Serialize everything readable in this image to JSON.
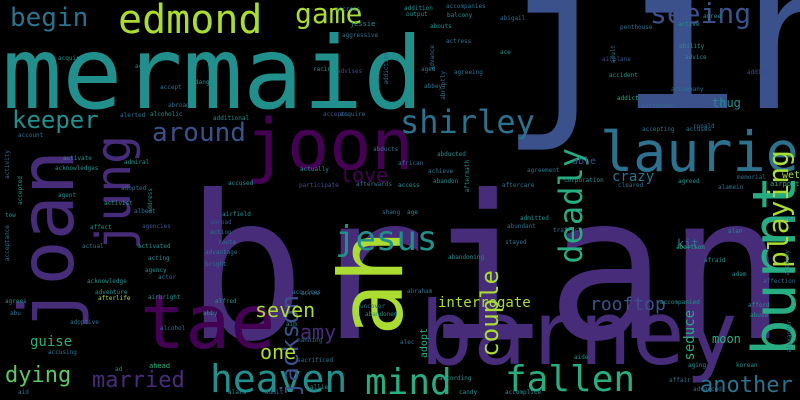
{
  "colors": {
    "background": "#000000",
    "palette": [
      "#440154",
      "#472c7a",
      "#3b518b",
      "#2c718e",
      "#21908d",
      "#27ad81",
      "#5cc863",
      "#aadc32"
    ]
  },
  "words": [
    {
      "text": "brian",
      "color": "#472c7a"
    },
    {
      "text": "jin",
      "color": "#3b518b"
    },
    {
      "text": "mermaid",
      "color": "#21908d"
    },
    {
      "text": "barney",
      "color": "#472c7a"
    },
    {
      "text": "ah",
      "color": "#aadc32"
    },
    {
      "text": "tae",
      "color": "#440154"
    },
    {
      "text": "joan",
      "color": "#472c7a"
    },
    {
      "text": "joon",
      "color": "#440154"
    },
    {
      "text": "burnt",
      "color": "#27ad81"
    },
    {
      "text": "laurie",
      "color": "#2c718e"
    },
    {
      "text": "jung",
      "color": "#472c7a"
    },
    {
      "text": "edmond",
      "color": "#aadc32"
    },
    {
      "text": "heaven",
      "color": "#21908d"
    },
    {
      "text": "mind",
      "color": "#27ad81"
    },
    {
      "text": "fallen",
      "color": "#27ad81"
    },
    {
      "text": "jesus",
      "color": "#21908d"
    },
    {
      "text": "shirley",
      "color": "#2c718e"
    },
    {
      "text": "deadly",
      "color": "#27ad81"
    },
    {
      "text": "playing",
      "color": "#aadc32"
    },
    {
      "text": "seeing",
      "color": "#3b518b"
    },
    {
      "text": "game",
      "color": "#aadc32"
    },
    {
      "text": "begin",
      "color": "#2c718e"
    },
    {
      "text": "around",
      "color": "#3b518b"
    },
    {
      "text": "couple",
      "color": "#aadc32"
    },
    {
      "text": "jackson",
      "color": "#3b518b"
    },
    {
      "text": "keeper",
      "color": "#21908d"
    },
    {
      "text": "married",
      "color": "#472c7a"
    },
    {
      "text": "dying",
      "color": "#5cc863"
    },
    {
      "text": "another",
      "color": "#2c718e"
    },
    {
      "text": "love",
      "color": "#440154"
    },
    {
      "text": "seven",
      "color": "#aadc32"
    },
    {
      "text": "amy",
      "color": "#472c7a"
    },
    {
      "text": "one",
      "color": "#aadc32"
    },
    {
      "text": "rooftop",
      "color": "#3b518b"
    },
    {
      "text": "interrogate",
      "color": "#aadc32"
    },
    {
      "text": "crazy",
      "color": "#2c718e"
    },
    {
      "text": "thug",
      "color": "#21908d"
    },
    {
      "text": "guise",
      "color": "#27ad81"
    },
    {
      "text": "kit",
      "color": "#2c718e"
    },
    {
      "text": "moon",
      "color": "#27ad81"
    },
    {
      "text": "seduce",
      "color": "#27ad81"
    },
    {
      "text": "able",
      "color": "#3b518b"
    },
    {
      "text": "wet",
      "color": "#aadc32"
    },
    {
      "text": "airport",
      "color": "#27ad81"
    },
    {
      "text": "accused",
      "color": "#21908d"
    },
    {
      "text": "abducted",
      "color": "#21908d"
    },
    {
      "text": "abortion",
      "color": "#27ad81"
    },
    {
      "text": "advice",
      "color": "#21908d"
    },
    {
      "text": "adult",
      "color": "#2c718e"
    },
    {
      "text": "accident",
      "color": "#21908d"
    },
    {
      "text": "addict",
      "color": "#27ad81"
    },
    {
      "text": "actress",
      "color": "#2c718e"
    },
    {
      "text": "aggressive",
      "color": "#2c718e"
    },
    {
      "text": "acquired",
      "color": "#21908d"
    },
    {
      "text": "acid",
      "color": "#21908d"
    },
    {
      "text": "jessie",
      "color": "#21908d"
    },
    {
      "text": "racing",
      "color": "#21908d"
    },
    {
      "text": "aged",
      "color": "#2c718e"
    },
    {
      "text": "addition",
      "color": "#21908d"
    },
    {
      "text": "output",
      "color": "#21908d"
    },
    {
      "text": "balcony",
      "color": "#21908d"
    },
    {
      "text": "abigail",
      "color": "#2c718e"
    },
    {
      "text": "agree",
      "color": "#21908d"
    },
    {
      "text": "active",
      "color": "#21908d"
    },
    {
      "text": "penthouse",
      "color": "#2c718e"
    },
    {
      "text": "ability",
      "color": "#21908d"
    },
    {
      "text": "accompanies",
      "color": "#2c718e"
    },
    {
      "text": "accross",
      "color": "#21908d"
    },
    {
      "text": "abouts",
      "color": "#21908d"
    },
    {
      "text": "airplane",
      "color": "#3b518b"
    },
    {
      "text": "agreeing",
      "color": "#2c718e"
    },
    {
      "text": "abbey",
      "color": "#2c718e"
    },
    {
      "text": "advises",
      "color": "#3b518b"
    },
    {
      "text": "accepts",
      "color": "#3b518b"
    },
    {
      "text": "alcoholic",
      "color": "#21908d"
    },
    {
      "text": "alerted",
      "color": "#2c718e"
    },
    {
      "text": "additional",
      "color": "#21908d"
    },
    {
      "text": "admiral",
      "color": "#21908d"
    },
    {
      "text": "activity",
      "color": "#2c718e"
    },
    {
      "text": "activate",
      "color": "#21908d"
    },
    {
      "text": "acknowledges",
      "color": "#21908d"
    },
    {
      "text": "account",
      "color": "#2c718e"
    },
    {
      "text": "actually",
      "color": "#21908d"
    },
    {
      "text": "participate",
      "color": "#3b518b"
    },
    {
      "text": "afterwards",
      "color": "#2c718e"
    },
    {
      "text": "access",
      "color": "#21908d"
    },
    {
      "text": "achieve",
      "color": "#2c718e"
    },
    {
      "text": "abandon",
      "color": "#21908d"
    },
    {
      "text": "african",
      "color": "#2c718e"
    },
    {
      "text": "aftermath",
      "color": "#21908d"
    },
    {
      "text": "agreement",
      "color": "#2c718e"
    },
    {
      "text": "corporation",
      "color": "#21908d"
    },
    {
      "text": "cleared",
      "color": "#2c718e"
    },
    {
      "text": "agreed",
      "color": "#21908d"
    },
    {
      "text": "memorial",
      "color": "#2c718e"
    },
    {
      "text": "alamein",
      "color": "#2c718e"
    },
    {
      "text": "accepting",
      "color": "#2c718e"
    },
    {
      "text": "accuses",
      "color": "#2c718e"
    },
    {
      "text": "ronald",
      "color": "#2c718e"
    },
    {
      "text": "accepted",
      "color": "#21908d"
    },
    {
      "text": "airfield",
      "color": "#21908d"
    },
    {
      "text": "agent",
      "color": "#21908d"
    },
    {
      "text": "activist",
      "color": "#21908d"
    },
    {
      "text": "address",
      "color": "#21908d"
    },
    {
      "text": "acceptance",
      "color": "#2c718e"
    },
    {
      "text": "tow",
      "color": "#21908d"
    },
    {
      "text": "affect",
      "color": "#21908d"
    },
    {
      "text": "actual",
      "color": "#2c718e"
    },
    {
      "text": "activated",
      "color": "#21908d"
    },
    {
      "text": "acting",
      "color": "#21908d"
    },
    {
      "text": "abroad",
      "color": "#3b518b"
    },
    {
      "text": "action",
      "color": "#2c718e"
    },
    {
      "text": "advantage",
      "color": "#2c718e"
    },
    {
      "text": "bright",
      "color": "#2c718e"
    },
    {
      "text": "route",
      "color": "#2c718e"
    },
    {
      "text": "shang",
      "color": "#2c718e"
    },
    {
      "text": "age",
      "color": "#21908d"
    },
    {
      "text": "admitted",
      "color": "#21908d"
    },
    {
      "text": "stayed",
      "color": "#2c718e"
    },
    {
      "text": "traffic",
      "color": "#2c718e"
    },
    {
      "text": "abundant",
      "color": "#2c718e"
    },
    {
      "text": "afraid",
      "color": "#21908d"
    },
    {
      "text": "alan",
      "color": "#21908d"
    },
    {
      "text": "adam",
      "color": "#21908d"
    },
    {
      "text": "affection",
      "color": "#2c718e"
    },
    {
      "text": "academy",
      "color": "#2c718e"
    },
    {
      "text": "abe",
      "color": "#21908d"
    },
    {
      "text": "agencies",
      "color": "#3b518b"
    },
    {
      "text": "actor",
      "color": "#2c718e"
    },
    {
      "text": "acknowledge",
      "color": "#21908d"
    },
    {
      "text": "adventure",
      "color": "#21908d"
    },
    {
      "text": "afterlife",
      "color": "#aadc32"
    },
    {
      "text": "airbright",
      "color": "#21908d"
    },
    {
      "text": "agrees",
      "color": "#21908d"
    },
    {
      "text": "abu",
      "color": "#2c718e"
    },
    {
      "text": "adoptive",
      "color": "#2c718e"
    },
    {
      "text": "alcohol",
      "color": "#2c718e"
    },
    {
      "text": "alfred",
      "color": "#21908d"
    },
    {
      "text": "abby",
      "color": "#21908d"
    },
    {
      "text": "aim",
      "color": "#21908d"
    },
    {
      "text": "uncover",
      "color": "#2c718e"
    },
    {
      "text": "abandoned",
      "color": "#21908d"
    },
    {
      "text": "abandoning",
      "color": "#21908d"
    },
    {
      "text": "abraham",
      "color": "#2c718e"
    },
    {
      "text": "accompanied",
      "color": "#21908d"
    },
    {
      "text": "afford",
      "color": "#21908d"
    },
    {
      "text": "abuse",
      "color": "#21908d"
    },
    {
      "text": "accusing",
      "color": "#2c718e"
    },
    {
      "text": "manning",
      "color": "#2c718e"
    },
    {
      "text": "sacrificed",
      "color": "#2c718e"
    },
    {
      "text": "alec",
      "color": "#2c718e"
    },
    {
      "text": "adopt",
      "color": "#27ad81"
    },
    {
      "text": "aide",
      "color": "#21908d"
    },
    {
      "text": "according",
      "color": "#21908d"
    },
    {
      "text": "candy",
      "color": "#21908d"
    },
    {
      "text": "accomplice",
      "color": "#21908d"
    },
    {
      "text": "aging",
      "color": "#21908d"
    },
    {
      "text": "korean",
      "color": "#21908d"
    },
    {
      "text": "affair",
      "color": "#2c718e"
    },
    {
      "text": "advanced",
      "color": "#2c718e"
    },
    {
      "text": "alexander",
      "color": "#2c718e"
    },
    {
      "text": "ahead",
      "color": "#27ad81"
    },
    {
      "text": "ad",
      "color": "#21908d"
    },
    {
      "text": "aid",
      "color": "#2c718e"
    },
    {
      "text": "alarm",
      "color": "#21908d"
    },
    {
      "text": "admit",
      "color": "#2c718e"
    },
    {
      "text": "allied",
      "color": "#21908d"
    },
    {
      "text": "acres",
      "color": "#2c718e"
    },
    {
      "text": "acquires",
      "color": "#2c718e"
    },
    {
      "text": "surrender",
      "color": "#2c718e"
    },
    {
      "text": "adding",
      "color": "#3b518b"
    },
    {
      "text": "accompany",
      "color": "#2c718e"
    },
    {
      "text": "ace",
      "color": "#21908d"
    },
    {
      "text": "dang",
      "color": "#21908d"
    },
    {
      "text": "accept",
      "color": "#2c718e"
    },
    {
      "text": "abruptly",
      "color": "#2c718e"
    },
    {
      "text": "advance",
      "color": "#2c718e"
    },
    {
      "text": "abducts",
      "color": "#2c718e"
    },
    {
      "text": "aftercare",
      "color": "#2c718e"
    },
    {
      "text": "albert",
      "color": "#2c718e"
    },
    {
      "text": "acquire",
      "color": "#2c718e"
    },
    {
      "text": "adopted",
      "color": "#2c718e"
    },
    {
      "text": "addiction",
      "color": "#2c718e"
    },
    {
      "text": "agency",
      "color": "#21908d"
    },
    {
      "text": "abroad",
      "color": "#2c718e"
    }
  ]
}
